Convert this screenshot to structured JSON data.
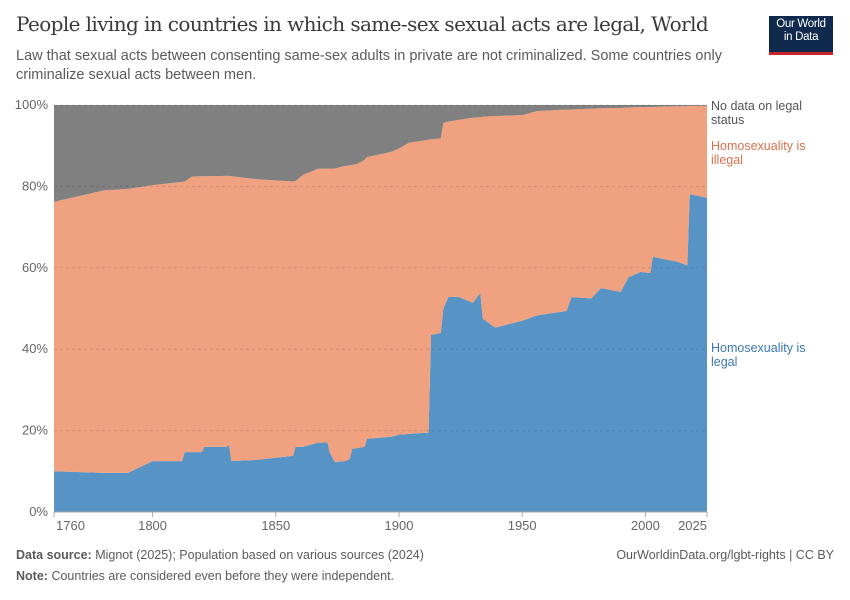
{
  "header": {
    "title": "People living in countries in which same-sex sexual acts are legal, World",
    "subtitle": "Law that sexual acts between consenting same-sex adults in private are not criminalized. Some countries only criminalize sexual acts between men.",
    "logo_line1": "Our World",
    "logo_line2": "in Data"
  },
  "footer": {
    "source_label": "Data source:",
    "source_text": "Mignot (2025); Population based on various sources (2024)",
    "note_label": "Note:",
    "note_text": "Countries are considered even before they were independent.",
    "link": "OurWorldinData.org/lgbt-rights | CC BY"
  },
  "chart_data": {
    "type": "area",
    "stacked": true,
    "title": "People living in countries in which same-sex sexual acts are legal, World",
    "xlabel": "",
    "ylabel": "",
    "xlim": [
      1760,
      2025
    ],
    "ylim": [
      0,
      100
    ],
    "x_ticks": [
      "1760",
      "1800",
      "1850",
      "1900",
      "1950",
      "2000",
      "2025"
    ],
    "y_ticks": [
      "0%",
      "20%",
      "40%",
      "60%",
      "80%",
      "100%"
    ],
    "grid": "horizontal dashed",
    "legend": "right, inline labels",
    "x": [
      1760,
      1780,
      1790,
      1800,
      1812,
      1813,
      1816,
      1820,
      1821,
      1830,
      1831,
      1832,
      1842,
      1857,
      1858,
      1861,
      1867,
      1871,
      1872,
      1874,
      1878,
      1880,
      1881,
      1883,
      1886,
      1887,
      1897,
      1900,
      1904,
      1909,
      1912,
      1913,
      1917,
      1918,
      1920,
      1924,
      1930,
      1933,
      1934,
      1939,
      1950,
      1956,
      1968,
      1970,
      1978,
      1982,
      1990,
      1993,
      1998,
      2002,
      2003,
      2007,
      2013,
      2017,
      2018,
      2025
    ],
    "series": [
      {
        "name": "Homosexuality is legal",
        "color": "#5793c5",
        "label_color": "#3b78b5",
        "values": [
          10,
          9.6,
          9.6,
          12.5,
          12.5,
          14.7,
          14.7,
          14.7,
          16,
          16,
          16.5,
          12.5,
          12.8,
          13.8,
          16,
          16,
          17,
          17.1,
          14.5,
          12.3,
          12.5,
          13,
          15.5,
          15.7,
          16,
          18,
          18.5,
          19,
          19.2,
          19.4,
          19.5,
          43.5,
          44,
          50,
          52.8,
          52.9,
          51.4,
          53.8,
          47.5,
          45.3,
          47,
          48.3,
          49.4,
          52.8,
          52.5,
          55,
          54.1,
          57.6,
          59,
          58.7,
          62.7,
          62.2,
          61.5,
          60.6,
          78.1,
          77.2
        ]
      },
      {
        "name": "Homosexuality is illegal",
        "color": "#f0a17f",
        "label_color": "#d9704f",
        "values": [
          66.2,
          69.4,
          69.8,
          67.8,
          68.6,
          66.5,
          67.7,
          67.8,
          66.5,
          66.6,
          66.1,
          70,
          69,
          67.4,
          65.3,
          66.8,
          67.3,
          67.3,
          69.9,
          72.1,
          72.5,
          72.2,
          69.8,
          69.8,
          70.5,
          69.2,
          70,
          70.3,
          71.5,
          71.8,
          72,
          48.1,
          47.8,
          45.6,
          43.1,
          43.4,
          45.5,
          43.2,
          49.6,
          52,
          50.5,
          50.2,
          49.5,
          46.1,
          46.6,
          44.2,
          45.2,
          41.8,
          40.5,
          40.8,
          36.8,
          37.4,
          38.2,
          39.1,
          21.7,
          22.6
        ]
      },
      {
        "name": "No data on legal status",
        "color": "#808080",
        "label_color": "#555555",
        "values": [
          23.8,
          21,
          20.6,
          19.7,
          18.9,
          18.8,
          17.6,
          17.5,
          17.5,
          17.4,
          17.4,
          17.5,
          18.2,
          18.8,
          18.7,
          17.2,
          15.7,
          15.6,
          15.6,
          15.6,
          15,
          14.8,
          14.7,
          14.5,
          13.5,
          12.8,
          11.5,
          10.7,
          9.3,
          8.8,
          8.5,
          8.4,
          8.2,
          4.4,
          4.1,
          3.7,
          3.1,
          3,
          2.9,
          2.7,
          2.5,
          1.5,
          1.1,
          1.1,
          0.9,
          0.8,
          0.7,
          0.6,
          0.5,
          0.5,
          0.5,
          0.4,
          0.3,
          0.3,
          0.2,
          0.2
        ]
      }
    ],
    "legend_labels": [
      {
        "line1": "No data on legal",
        "line2": "status"
      },
      {
        "line1": "Homosexuality is",
        "line2": "illegal"
      },
      {
        "line1": "Homosexuality is",
        "line2": "legal"
      }
    ]
  }
}
